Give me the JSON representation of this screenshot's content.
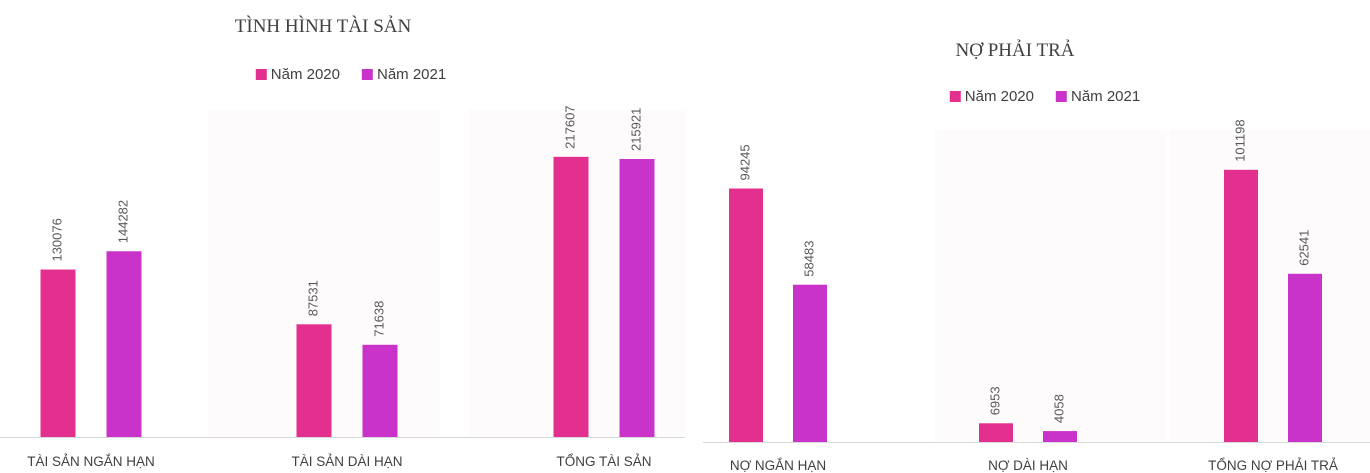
{
  "chart_data": [
    {
      "type": "bar",
      "title": "TÌNH HÌNH TÀI SẢN",
      "categories": [
        "TÀI SẢN NGẮN HẠN",
        "TÀI SẢN DÀI HẠN",
        "TỔNG TÀI SẢN"
      ],
      "series": [
        {
          "name": "Năm 2020",
          "values": [
            130076,
            87531,
            217607
          ],
          "color": "#e3308e"
        },
        {
          "name": "Năm 2021",
          "values": [
            144282,
            71638,
            215921
          ],
          "color": "#c933c9"
        }
      ],
      "xlabel": "",
      "ylabel": "",
      "ylim": [
        0,
        254000
      ],
      "grid": false,
      "legend": "top",
      "data_labels": true
    },
    {
      "type": "bar",
      "title": "NỢ PHẢI TRẢ",
      "categories": [
        "NỢ NGẮN HẠN",
        "NỢ DÀI HẠN",
        "TỔNG NỢ PHẢI TRẢ"
      ],
      "series": [
        {
          "name": "Năm 2020",
          "values": [
            94245,
            6953,
            101198
          ],
          "color": "#e3308e"
        },
        {
          "name": "Năm 2021",
          "values": [
            58483,
            4058,
            62541
          ],
          "color": "#c933c9"
        }
      ],
      "xlabel": "",
      "ylabel": "",
      "ylim": [
        0,
        116000
      ],
      "grid": false,
      "legend": "top",
      "data_labels": true
    }
  ]
}
